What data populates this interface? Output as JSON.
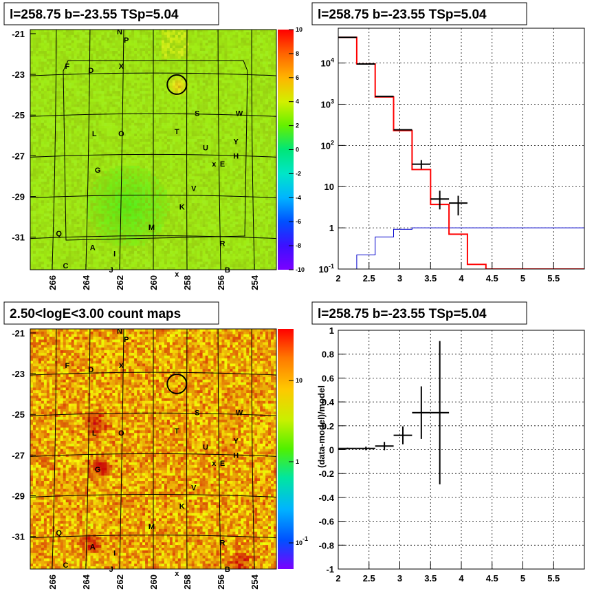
{
  "colors": {
    "data": "#000000",
    "model": "#ff0000",
    "background": "#0000cc"
  },
  "source": {
    "name": "l=258.75 b=-23.55 TSp=5.04",
    "l": 258.75,
    "b": -23.55,
    "ts": 5.04
  },
  "panels": {
    "tl_title": "l=258.75 b=-23.55 TSp=5.04",
    "tr_title": "l=258.75 b=-23.55 TSp=5.04",
    "bl_title": "2.50<logE<3.00 count maps",
    "br_title": "l=258.75 b=-23.55 TSp=5.04"
  },
  "chart_data": [
    {
      "type": "heatmap",
      "panel": "top-left",
      "title": "l=258.75 b=-23.55 TSp=5.04",
      "x_ticks": [
        "266",
        "264",
        "262",
        "260",
        "258",
        "256",
        "254"
      ],
      "y_ticks": [
        "-21",
        "-23",
        "-25",
        "-27",
        "-29",
        "-31"
      ],
      "xlim": [
        267.3,
        252.7
      ],
      "ylim": [
        -32.6,
        -20.8
      ],
      "colorbar": {
        "min": -10,
        "max": 10,
        "ticks": [
          "10",
          "8",
          "6",
          "4",
          "2",
          "0",
          "-2",
          "-4",
          "-6",
          "-8",
          "-10"
        ]
      },
      "circle": {
        "x": 258.6,
        "y": -23.5
      },
      "labels": [
        {
          "t": "N",
          "x": 262.0,
          "y": -20.9
        },
        {
          "t": "P",
          "x": 261.6,
          "y": -21.3
        },
        {
          "t": "F",
          "x": 265.1,
          "y": -22.6
        },
        {
          "t": "D",
          "x": 263.7,
          "y": -22.8
        },
        {
          "t": "X",
          "x": 261.9,
          "y": -22.6
        },
        {
          "t": "S",
          "x": 257.4,
          "y": -24.9
        },
        {
          "t": "W",
          "x": 254.9,
          "y": -24.9
        },
        {
          "t": "L",
          "x": 263.5,
          "y": -25.9
        },
        {
          "t": "O",
          "x": 261.9,
          "y": -25.9
        },
        {
          "t": "T",
          "x": 258.6,
          "y": -25.8
        },
        {
          "t": "Y",
          "x": 255.1,
          "y": -26.3
        },
        {
          "t": "U",
          "x": 256.9,
          "y": -26.6
        },
        {
          "t": "H",
          "x": 255.1,
          "y": -27.0
        },
        {
          "t": "E",
          "x": 255.9,
          "y": -27.4
        },
        {
          "t": "x",
          "x": 256.4,
          "y": -27.4
        },
        {
          "t": "G",
          "x": 263.3,
          "y": -27.7
        },
        {
          "t": "V",
          "x": 257.6,
          "y": -28.6
        },
        {
          "t": "K",
          "x": 258.3,
          "y": -29.5
        },
        {
          "t": "M",
          "x": 260.1,
          "y": -30.5
        },
        {
          "t": "Q",
          "x": 265.6,
          "y": -30.8
        },
        {
          "t": "R",
          "x": 255.9,
          "y": -31.3
        },
        {
          "t": "A",
          "x": 263.6,
          "y": -31.5
        },
        {
          "t": "I",
          "x": 262.3,
          "y": -31.8
        },
        {
          "t": "C",
          "x": 265.2,
          "y": -32.4
        },
        {
          "t": "J",
          "x": 262.5,
          "y": -32.6
        },
        {
          "t": "B",
          "x": 255.6,
          "y": -32.6
        },
        {
          "t": "x",
          "x": 258.6,
          "y": -32.8
        }
      ]
    },
    {
      "type": "line",
      "panel": "top-right",
      "title": "l=258.75 b=-23.55 TSp=5.04",
      "xlabel": "",
      "ylabel": "",
      "xlim": [
        2,
        6
      ],
      "ylim": [
        0.1,
        70000
      ],
      "y_scale": "log",
      "grid": true,
      "x_ticks": [
        "2",
        "2.5",
        "3",
        "3.5",
        "4",
        "4.5",
        "5",
        "5.5"
      ],
      "y_ticks": [
        "10^-1",
        "1",
        "10",
        "10^2",
        "10^3",
        "10^4"
      ],
      "series": [
        {
          "role": "model",
          "color": "#ff0000",
          "edges": [
            2,
            2.3,
            2.6,
            2.9,
            3.2,
            3.5,
            3.8,
            4.1,
            4.4,
            6
          ],
          "values": [
            42000,
            9500,
            1500,
            230,
            26,
            3.7,
            0.7,
            0.13,
            0.1
          ]
        },
        {
          "role": "background",
          "color": "#0000cc",
          "edges": [
            2.3,
            2.6,
            2.9,
            3.2,
            3.5,
            6
          ],
          "values": [
            0.22,
            0.6,
            0.92,
            1.0,
            1.0
          ]
        },
        {
          "role": "data",
          "color": "#000000",
          "x": [
            2.15,
            2.45,
            2.75,
            3.05,
            3.35,
            3.65,
            3.95
          ],
          "xerr": [
            0.15,
            0.15,
            0.15,
            0.15,
            0.15,
            0.15,
            0.15
          ],
          "y": [
            42000,
            9500,
            1550,
            240,
            35,
            5,
            4
          ],
          "ylo": [
            42000,
            9500,
            1550,
            240,
            27,
            2.8,
            2
          ],
          "yhi": [
            42000,
            9500,
            1550,
            240,
            44,
            8,
            6
          ]
        }
      ]
    },
    {
      "type": "heatmap",
      "panel": "bottom-left",
      "title": "2.50<logE<3.00 count maps",
      "x_ticks": [
        "266",
        "264",
        "262",
        "260",
        "258",
        "256",
        "254"
      ],
      "y_ticks": [
        "-21",
        "-23",
        "-25",
        "-27",
        "-29",
        "-31"
      ],
      "xlim": [
        267.3,
        252.7
      ],
      "ylim": [
        -32.6,
        -20.8
      ],
      "colorbar": {
        "scale": "log",
        "ticks": [
          "10",
          "1",
          "10^-1"
        ]
      },
      "circle": {
        "x": 258.6,
        "y": -23.5
      },
      "labels": [
        {
          "t": "N",
          "x": 262.0,
          "y": -20.9
        },
        {
          "t": "P",
          "x": 261.6,
          "y": -21.3
        },
        {
          "t": "F",
          "x": 265.1,
          "y": -22.6
        },
        {
          "t": "D",
          "x": 263.7,
          "y": -22.8
        },
        {
          "t": "X",
          "x": 261.9,
          "y": -22.6
        },
        {
          "t": "S",
          "x": 257.4,
          "y": -24.9
        },
        {
          "t": "W",
          "x": 254.9,
          "y": -24.9
        },
        {
          "t": "L",
          "x": 263.5,
          "y": -25.9
        },
        {
          "t": "O",
          "x": 261.9,
          "y": -25.9
        },
        {
          "t": "T",
          "x": 258.6,
          "y": -25.8
        },
        {
          "t": "Y",
          "x": 255.1,
          "y": -26.3
        },
        {
          "t": "U",
          "x": 256.9,
          "y": -26.6
        },
        {
          "t": "H",
          "x": 255.1,
          "y": -27.0
        },
        {
          "t": "E",
          "x": 255.9,
          "y": -27.4
        },
        {
          "t": "x",
          "x": 256.4,
          "y": -27.4
        },
        {
          "t": "G",
          "x": 263.3,
          "y": -27.7
        },
        {
          "t": "V",
          "x": 257.6,
          "y": -28.6
        },
        {
          "t": "K",
          "x": 258.3,
          "y": -29.5
        },
        {
          "t": "M",
          "x": 260.1,
          "y": -30.5
        },
        {
          "t": "Q",
          "x": 265.6,
          "y": -30.8
        },
        {
          "t": "R",
          "x": 255.9,
          "y": -31.3
        },
        {
          "t": "A",
          "x": 263.6,
          "y": -31.5
        },
        {
          "t": "I",
          "x": 262.3,
          "y": -31.8
        },
        {
          "t": "C",
          "x": 265.2,
          "y": -32.4
        },
        {
          "t": "J",
          "x": 262.5,
          "y": -32.6
        },
        {
          "t": "B",
          "x": 255.6,
          "y": -32.6
        },
        {
          "t": "x",
          "x": 258.6,
          "y": -32.8
        }
      ]
    },
    {
      "type": "scatter",
      "panel": "bottom-right",
      "title": "l=258.75 b=-23.55 TSp=5.04",
      "xlabel": "",
      "ylabel": "(data-model)/model",
      "xlim": [
        2,
        6
      ],
      "ylim": [
        -1,
        1
      ],
      "grid": true,
      "x_ticks": [
        "2",
        "2.5",
        "3",
        "3.5",
        "4",
        "4.5",
        "5",
        "5.5"
      ],
      "y_ticks": [
        "1",
        "0.8",
        "0.6",
        "0.4",
        "0.2",
        "0",
        "-0.2",
        "-0.4",
        "-0.6",
        "-0.8",
        "-1"
      ],
      "points": [
        {
          "x": 2.15,
          "xerr": 0.15,
          "y": 0.01,
          "yerr": 0.006
        },
        {
          "x": 2.45,
          "xerr": 0.15,
          "y": 0.01,
          "yerr": 0.015
        },
        {
          "x": 2.75,
          "xerr": 0.15,
          "y": 0.03,
          "yerr": 0.035
        },
        {
          "x": 3.05,
          "xerr": 0.15,
          "y": 0.12,
          "yerr": 0.075
        },
        {
          "x": 3.35,
          "xerr": 0.15,
          "y": 0.31,
          "yerr": 0.22
        },
        {
          "x": 3.65,
          "xerr": 0.15,
          "y": 0.31,
          "yerr": 0.6
        }
      ]
    }
  ]
}
